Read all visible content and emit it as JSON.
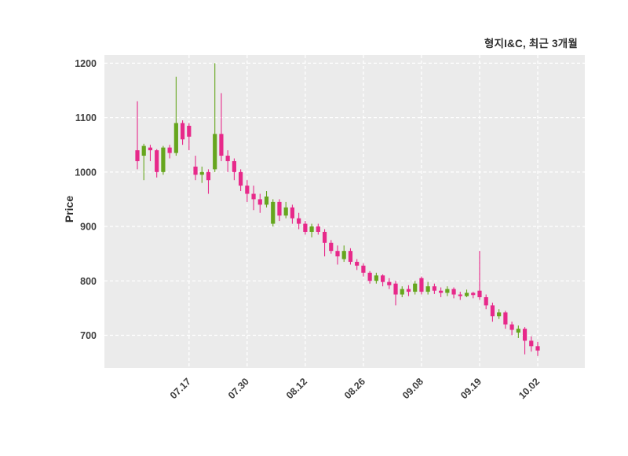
{
  "chart_data": {
    "type": "candlestick",
    "title": "형지I&C, 최근 3개월",
    "series_name": "형지I&C",
    "period_label": "최근 3개월",
    "ylabel": "Price",
    "xlabel": "",
    "ylim": [
      640,
      1215
    ],
    "yticks": [
      700,
      800,
      900,
      1000,
      1100,
      1200
    ],
    "xticks": [
      {
        "label": "07.17",
        "index": 8
      },
      {
        "label": "07.30",
        "index": 17
      },
      {
        "label": "08.12",
        "index": 26
      },
      {
        "label": "08.26",
        "index": 35
      },
      {
        "label": "09.08",
        "index": 44
      },
      {
        "label": "09.19",
        "index": 53
      },
      {
        "label": "10.02",
        "index": 62
      }
    ],
    "grid": "dashed-white-on-gray",
    "legend_position": "none",
    "colors": {
      "up": "#66A61E",
      "down": "#E7298A",
      "plot_bg": "#EBEBEB",
      "grid": "#FFFFFF",
      "text": "#3F3F3F"
    },
    "ohlc_order": [
      "open",
      "high",
      "low",
      "close"
    ],
    "candles": [
      [
        1040,
        1130,
        1005,
        1020
      ],
      [
        1030,
        1052,
        985,
        1048
      ],
      [
        1045,
        1050,
        1020,
        1040
      ],
      [
        1040,
        1042,
        990,
        1000
      ],
      [
        1000,
        1048,
        995,
        1045
      ],
      [
        1045,
        1050,
        1025,
        1035
      ],
      [
        1035,
        1175,
        1030,
        1090
      ],
      [
        1090,
        1095,
        1050,
        1060
      ],
      [
        1085,
        1090,
        1040,
        1065
      ],
      [
        1010,
        1030,
        985,
        995
      ],
      [
        995,
        1010,
        980,
        1000
      ],
      [
        1000,
        1005,
        960,
        985
      ],
      [
        1005,
        1200,
        1000,
        1070
      ],
      [
        1070,
        1145,
        1020,
        1030
      ],
      [
        1030,
        1040,
        1000,
        1020
      ],
      [
        1020,
        1025,
        985,
        1000
      ],
      [
        1000,
        1005,
        965,
        975
      ],
      [
        975,
        985,
        945,
        960
      ],
      [
        960,
        975,
        930,
        950
      ],
      [
        950,
        960,
        925,
        940
      ],
      [
        940,
        965,
        935,
        955
      ],
      [
        905,
        950,
        900,
        945
      ],
      [
        945,
        950,
        910,
        920
      ],
      [
        920,
        945,
        915,
        935
      ],
      [
        935,
        940,
        905,
        915
      ],
      [
        915,
        925,
        895,
        905
      ],
      [
        905,
        910,
        885,
        890
      ],
      [
        890,
        905,
        880,
        900
      ],
      [
        900,
        905,
        885,
        890
      ],
      [
        890,
        895,
        845,
        870
      ],
      [
        870,
        875,
        850,
        855
      ],
      [
        855,
        865,
        830,
        845
      ],
      [
        840,
        865,
        835,
        855
      ],
      [
        855,
        860,
        830,
        835
      ],
      [
        835,
        840,
        820,
        828
      ],
      [
        828,
        832,
        808,
        815
      ],
      [
        815,
        818,
        795,
        800
      ],
      [
        800,
        815,
        795,
        810
      ],
      [
        810,
        812,
        790,
        798
      ],
      [
        798,
        805,
        785,
        792
      ],
      [
        795,
        800,
        755,
        775
      ],
      [
        775,
        790,
        770,
        785
      ],
      [
        785,
        792,
        772,
        780
      ],
      [
        780,
        800,
        775,
        795
      ],
      [
        805,
        808,
        775,
        780
      ],
      [
        780,
        798,
        775,
        790
      ],
      [
        790,
        795,
        776,
        782
      ],
      [
        782,
        788,
        770,
        778
      ],
      [
        778,
        790,
        772,
        785
      ],
      [
        785,
        788,
        768,
        775
      ],
      [
        775,
        780,
        765,
        772
      ],
      [
        772,
        784,
        770,
        778
      ],
      [
        778,
        780,
        768,
        774
      ],
      [
        782,
        855,
        765,
        770
      ],
      [
        770,
        775,
        748,
        755
      ],
      [
        755,
        760,
        725,
        735
      ],
      [
        735,
        748,
        730,
        742
      ],
      [
        742,
        745,
        712,
        720
      ],
      [
        720,
        725,
        700,
        710
      ],
      [
        705,
        718,
        695,
        712
      ],
      [
        712,
        715,
        665,
        690
      ],
      [
        690,
        698,
        670,
        680
      ],
      [
        680,
        688,
        662,
        672
      ]
    ]
  }
}
